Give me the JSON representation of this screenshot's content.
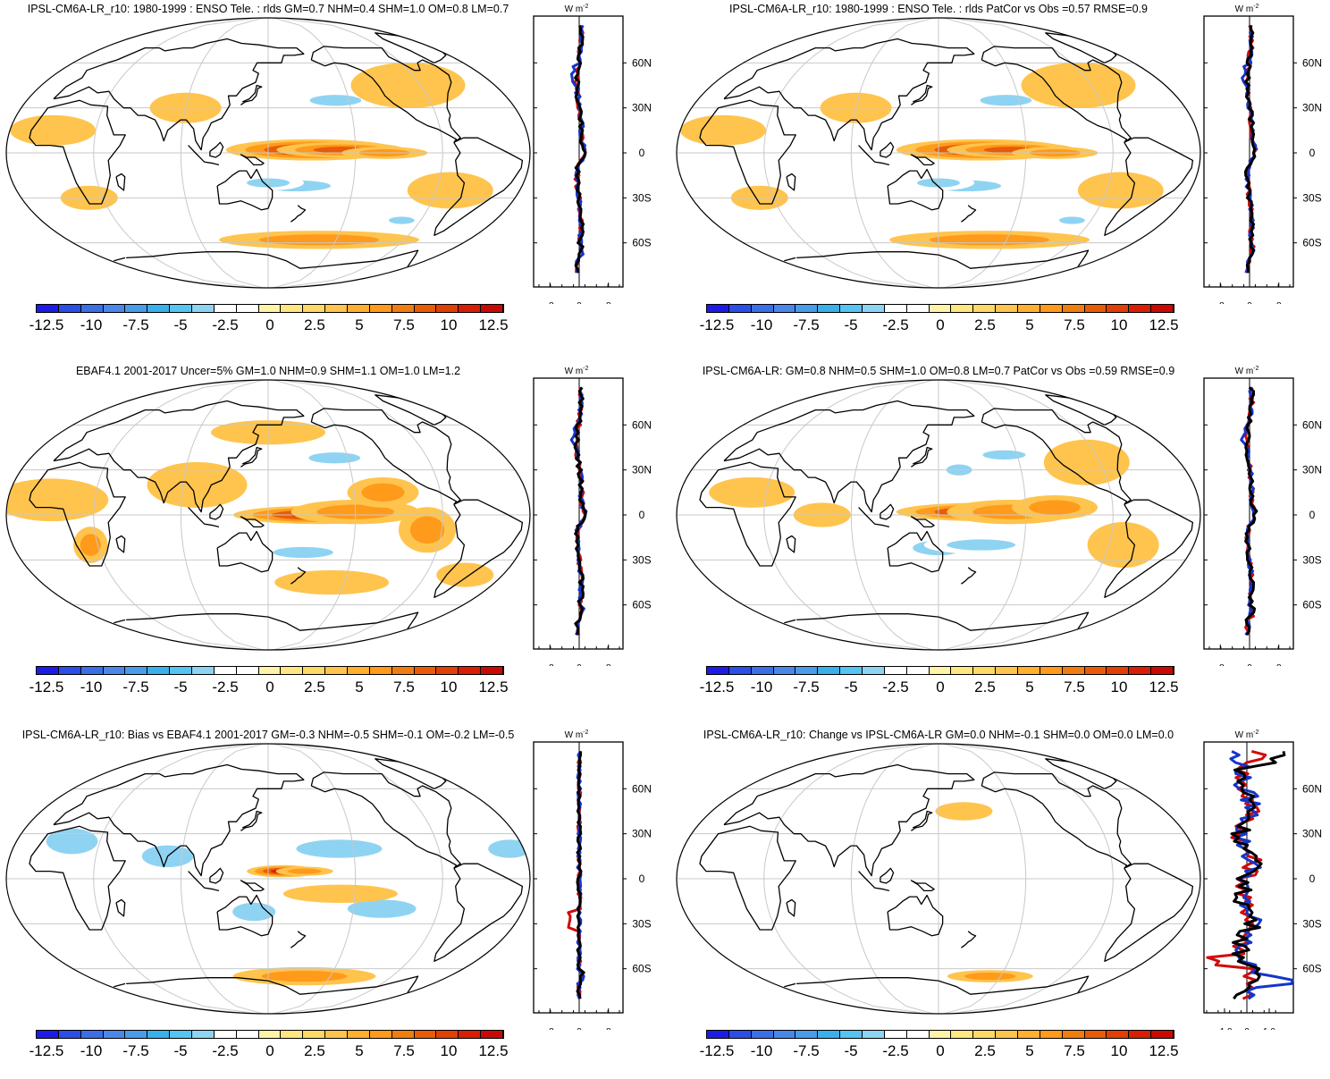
{
  "colorbar": {
    "labels": [
      "-12.5",
      "-10",
      "-7.5",
      "-5",
      "-2.5",
      "0",
      "2.5",
      "5",
      "7.5",
      "10",
      "12.5"
    ],
    "colors": [
      "#1f1be6",
      "#2a4ee6",
      "#3c6ee6",
      "#4a87e8",
      "#4a9be8",
      "#3ab0ea",
      "#56c4f0",
      "#8fd3f2",
      "#ffffff",
      "#ffffff",
      "#fff3a8",
      "#ffe680",
      "#ffd966",
      "#ffc44d",
      "#ffb030",
      "#ff9a1a",
      "#f07d0f",
      "#e85c08",
      "#e04006",
      "#d81e05",
      "#c80a04"
    ]
  },
  "zonal_axis": {
    "unit": "W m",
    "unit_exp": "-2",
    "lat_labels": [
      "60N",
      "30N",
      "0",
      "30S",
      "60S"
    ]
  },
  "panels": [
    {
      "title": "IPSL-CM6A-LR_r10: 1980-1999 : ENSO Tele. : rlds GM=0.7 NHM=0.4 SHM=1.0 OM=0.8 LM=0.7",
      "x_ticks": [
        "-8",
        "0",
        "8"
      ]
    },
    {
      "title": "IPSL-CM6A-LR_r10: 1980-1999 : ENSO Tele. : rlds PatCor vs Obs =0.57 RMSE=0.9",
      "x_ticks": [
        "-8",
        "0",
        "8"
      ]
    },
    {
      "title": "EBAF4.1 2001-2017 Uncer=5% GM=1.0 NHM=0.9 SHM=1.1 OM=1.0 LM=1.2",
      "x_ticks": [
        "-8",
        "0",
        "8"
      ]
    },
    {
      "title": "IPSL-CM6A-LR: GM=0.8 NHM=0.5 SHM=1.0 OM=0.8 LM=0.7 PatCor vs Obs =0.59 RMSE=0.9",
      "x_ticks": [
        "-8",
        "0",
        "8"
      ]
    },
    {
      "title": "IPSL-CM6A-LR_r10: Bias vs EBAF4.1 2001-2017 GM=-0.3 NHM=-0.5 SHM=-0.1 OM=-0.2 LM=-0.5",
      "x_ticks": [
        "-8",
        "0",
        "8"
      ]
    },
    {
      "title": "IPSL-CM6A-LR_r10: Change vs IPSL-CM6A-LR GM=0.0 NHM=-0.1 SHM=0.0 OM=0.0 LM=0.0",
      "x_ticks": [
        "-1.0",
        "0",
        "1.0"
      ]
    }
  ]
}
